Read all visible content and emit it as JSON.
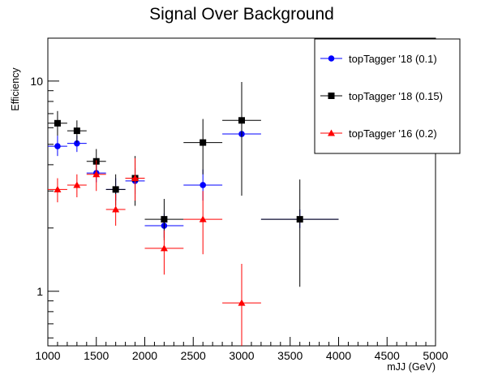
{
  "chart_data": {
    "type": "scatter",
    "title": "Signal Over Background",
    "xlabel": "mJJ (GeV)",
    "ylabel": "Efficiency",
    "xlim": [
      1000,
      5000
    ],
    "ylim": [
      0.55,
      16
    ],
    "yscale": "log",
    "x_ticks": [
      1000,
      1500,
      2000,
      2500,
      3000,
      3500,
      4000,
      4500,
      5000
    ],
    "x_tick_labels": [
      "1000",
      "1500",
      "2000",
      "2500",
      "3000",
      "3500",
      "4000",
      "4500",
      "5000"
    ],
    "y_ticks": [
      1,
      10
    ],
    "y_tick_labels": [
      "1",
      "10"
    ],
    "grid": false,
    "legend_position": "top-right",
    "series": [
      {
        "name": "topTagger '18 (0.1)",
        "color": "#0000ff",
        "marker": "circle",
        "points": [
          {
            "x": 1100,
            "xerr": 100,
            "y": 4.9,
            "ylo": 4.4,
            "yhi": 5.5
          },
          {
            "x": 1300,
            "xerr": 100,
            "y": 5.05,
            "ylo": 4.6,
            "yhi": 5.5
          },
          {
            "x": 1500,
            "xerr": 100,
            "y": 3.65,
            "ylo": 3.3,
            "yhi": 4.0
          },
          {
            "x": 1700,
            "xerr": 100,
            "y": 3.05,
            "ylo": 2.7,
            "yhi": 3.45
          },
          {
            "x": 1900,
            "xerr": 100,
            "y": 3.35,
            "ylo": 2.9,
            "yhi": 3.85
          },
          {
            "x": 2200,
            "xerr": 200,
            "y": 2.05,
            "ylo": 1.8,
            "yhi": 2.35
          },
          {
            "x": 2600,
            "xerr": 200,
            "y": 3.2,
            "ylo": 2.7,
            "yhi": 3.8
          },
          {
            "x": 3000,
            "xerr": 200,
            "y": 5.6,
            "ylo": 4.6,
            "yhi": 6.8
          },
          {
            "x": 3600,
            "xerr": 400,
            "y": 2.2,
            "ylo": 2.0,
            "yhi": 2.45
          }
        ]
      },
      {
        "name": "topTagger '18 (0.15)",
        "color": "#000000",
        "marker": "square",
        "points": [
          {
            "x": 1100,
            "xerr": 100,
            "y": 6.3,
            "ylo": 5.5,
            "yhi": 7.2
          },
          {
            "x": 1300,
            "xerr": 100,
            "y": 5.8,
            "ylo": 5.1,
            "yhi": 6.5
          },
          {
            "x": 1500,
            "xerr": 100,
            "y": 4.15,
            "ylo": 3.6,
            "yhi": 4.75
          },
          {
            "x": 1700,
            "xerr": 100,
            "y": 3.05,
            "ylo": 2.55,
            "yhi": 3.6
          },
          {
            "x": 1900,
            "xerr": 100,
            "y": 3.45,
            "ylo": 2.55,
            "yhi": 4.4
          },
          {
            "x": 2200,
            "xerr": 200,
            "y": 2.2,
            "ylo": 1.75,
            "yhi": 2.75
          },
          {
            "x": 2600,
            "xerr": 200,
            "y": 5.1,
            "ylo": 3.6,
            "yhi": 6.6
          },
          {
            "x": 3000,
            "xerr": 200,
            "y": 6.5,
            "ylo": 2.85,
            "yhi": 9.9
          },
          {
            "x": 3600,
            "xerr": 400,
            "y": 2.2,
            "ylo": 1.05,
            "yhi": 3.4
          }
        ]
      },
      {
        "name": "topTagger '16 (0.2)",
        "color": "#ff0000",
        "marker": "triangle",
        "points": [
          {
            "x": 1100,
            "xerr": 100,
            "y": 3.05,
            "ylo": 2.65,
            "yhi": 3.45
          },
          {
            "x": 1300,
            "xerr": 100,
            "y": 3.2,
            "ylo": 2.8,
            "yhi": 3.6
          },
          {
            "x": 1500,
            "xerr": 100,
            "y": 3.6,
            "ylo": 3.0,
            "yhi": 4.2
          },
          {
            "x": 1700,
            "xerr": 100,
            "y": 2.45,
            "ylo": 2.05,
            "yhi": 2.9
          },
          {
            "x": 1900,
            "xerr": 100,
            "y": 3.45,
            "ylo": 2.7,
            "yhi": 4.3
          },
          {
            "x": 2200,
            "xerr": 200,
            "y": 1.6,
            "ylo": 1.2,
            "yhi": 1.95
          },
          {
            "x": 2600,
            "xerr": 200,
            "y": 2.2,
            "ylo": 1.5,
            "yhi": 3.0
          },
          {
            "x": 3000,
            "xerr": 200,
            "y": 0.88,
            "ylo": 0.4,
            "yhi": 1.35
          }
        ]
      }
    ]
  }
}
